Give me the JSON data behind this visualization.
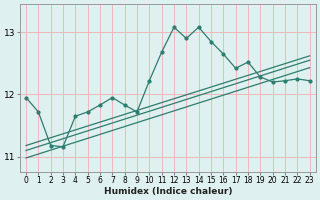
{
  "xlabel": "Humidex (Indice chaleur)",
  "background_color": "#dff0f0",
  "grid_color": "#f0b8b8",
  "line_color": "#2e7d6e",
  "xlim": [
    -0.5,
    23.5
  ],
  "ylim": [
    10.75,
    13.45
  ],
  "yticks": [
    11,
    12,
    13
  ],
  "xticks": [
    0,
    1,
    2,
    3,
    4,
    5,
    6,
    7,
    8,
    9,
    10,
    11,
    12,
    13,
    14,
    15,
    16,
    17,
    18,
    19,
    20,
    21,
    22,
    23
  ],
  "main_x": [
    0,
    1,
    2,
    3,
    4,
    5,
    6,
    7,
    8,
    9,
    10,
    11,
    12,
    13,
    14,
    15,
    16,
    17,
    18,
    19,
    20,
    21,
    22,
    23
  ],
  "main_y": [
    11.95,
    11.72,
    11.18,
    11.16,
    11.65,
    11.72,
    11.83,
    11.95,
    11.83,
    11.72,
    12.22,
    12.68,
    13.08,
    12.9,
    13.08,
    12.85,
    12.65,
    12.42,
    12.52,
    12.28,
    12.2,
    12.22,
    12.25,
    12.22
  ],
  "line1_x": [
    0,
    23
  ],
  "line1_y": [
    11.18,
    12.62
  ],
  "line2_x": [
    0,
    23
  ],
  "line2_y": [
    11.1,
    12.55
  ],
  "line3_x": [
    0,
    23
  ],
  "line3_y": [
    10.98,
    12.43
  ]
}
